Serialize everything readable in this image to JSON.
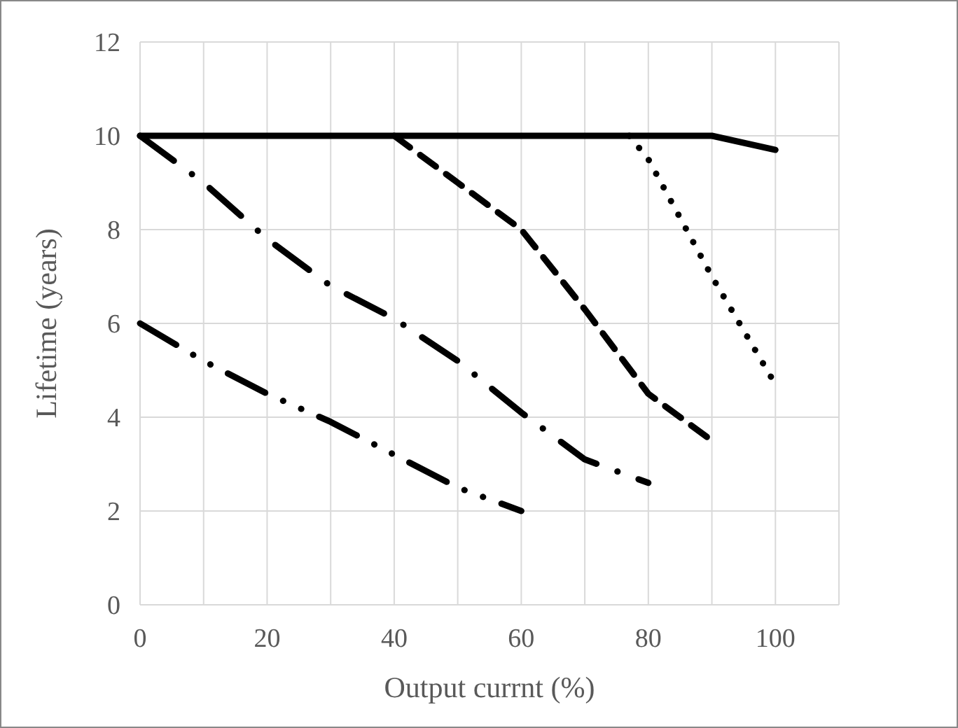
{
  "chart_data": {
    "type": "line",
    "xlabel": "Output currnt (%)",
    "ylabel": "Lifetime (years)",
    "xlim": [
      0,
      110
    ],
    "ylim": [
      0,
      12
    ],
    "xticks": [
      0,
      {
        "value": 10,
        "label": null
      },
      20,
      {
        "value": 30,
        "label": null
      },
      40,
      {
        "value": 50,
        "label": null
      },
      60,
      {
        "value": 70,
        "label": null
      },
      80,
      {
        "value": 90,
        "label": null
      },
      100,
      {
        "value": 110,
        "label": null
      }
    ],
    "yticks": [
      0,
      2,
      4,
      6,
      8,
      10,
      12
    ],
    "grid": true,
    "marker": "none",
    "series": [
      {
        "color": "#000000",
        "line_style": "solid",
        "x": [
          0,
          90,
          100
        ],
        "values": [
          10,
          10,
          9.7
        ]
      },
      {
        "color": "#000000",
        "line_style": "dashed",
        "x": [
          40,
          50,
          60,
          70,
          80,
          90
        ],
        "values": [
          10,
          9,
          8,
          6.3,
          4.5,
          3.5
        ]
      },
      {
        "color": "#000000",
        "line_style": "dotted",
        "x": [
          77,
          80,
          90,
          100
        ],
        "values": [
          10,
          9.5,
          7,
          4.7
        ]
      },
      {
        "color": "#000000",
        "line_style": "dashdot",
        "x": [
          0,
          10,
          20,
          30,
          40,
          50,
          60,
          70,
          80
        ],
        "values": [
          10,
          9,
          7.8,
          6.8,
          6.1,
          5.2,
          4.1,
          3.1,
          2.6
        ]
      },
      {
        "color": "#000000",
        "line_style": "dashdotdot",
        "x": [
          0,
          10,
          20,
          30,
          40,
          50,
          60
        ],
        "values": [
          6,
          5.2,
          4.5,
          3.9,
          3.2,
          2.5,
          2
        ]
      }
    ]
  }
}
